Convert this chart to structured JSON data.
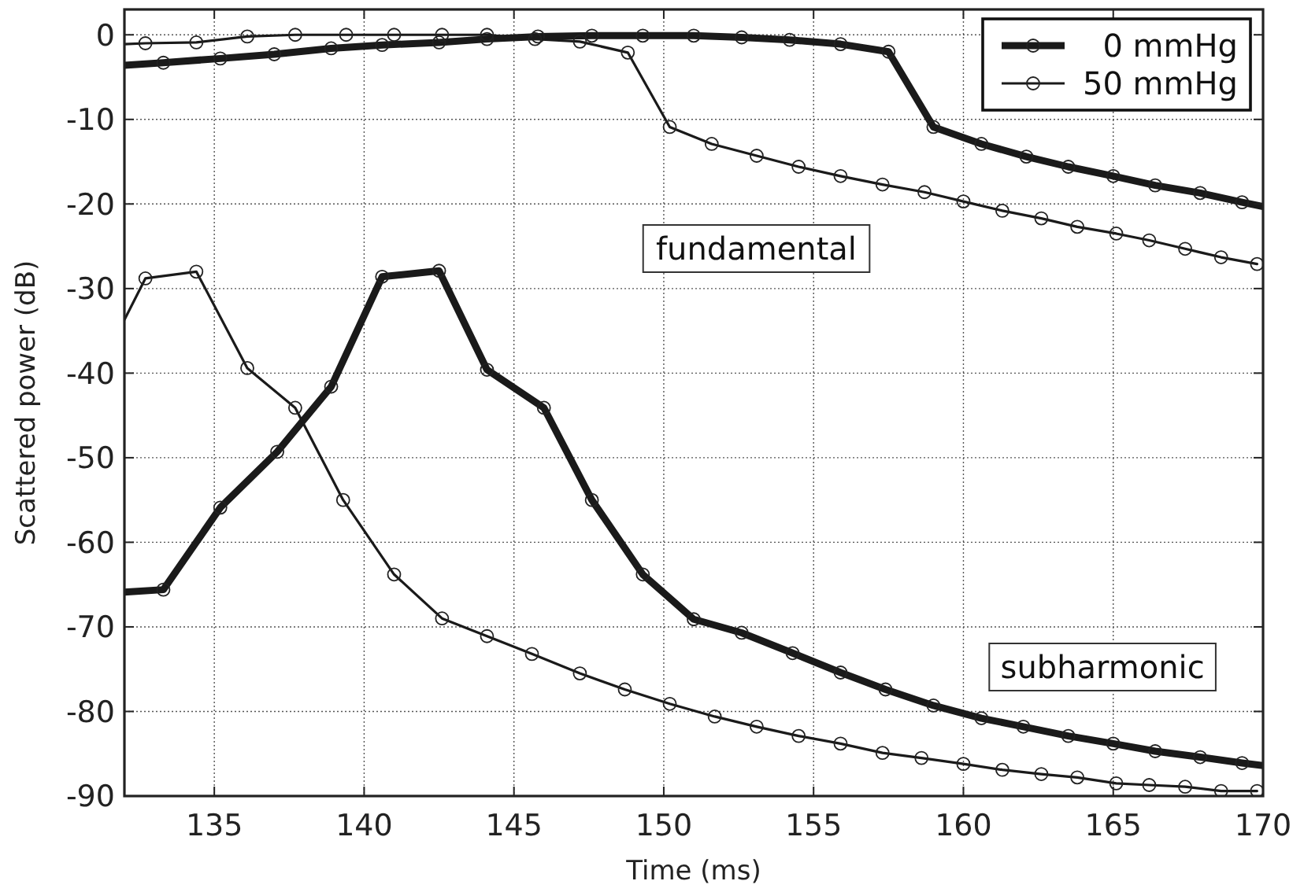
{
  "chart_data": {
    "type": "line",
    "xlabel": "Time (ms)",
    "ylabel": "Scattered power (dB)",
    "xlim": [
      132,
      170
    ],
    "ylim": [
      -90,
      3
    ],
    "xticks": [
      135,
      140,
      145,
      150,
      155,
      160,
      165,
      170
    ],
    "yticks": [
      -90,
      -80,
      -70,
      -60,
      -50,
      -40,
      -30,
      -20,
      -10,
      0
    ],
    "grid": true,
    "legend": "top right",
    "marker": "circle",
    "line_style": "solid",
    "annotations": [
      "fundamental",
      "subharmonic"
    ],
    "series": [
      {
        "name": "0 mmHg",
        "color": "#1a1a1a",
        "x": [
          132,
          133.3,
          135.2,
          137.0,
          138.9,
          140.6,
          142.5,
          144.1,
          145.8,
          147.6,
          149.3,
          151.0,
          152.6,
          154.2,
          155.9,
          157.5,
          159.0,
          160.6,
          162.1,
          163.5,
          165.0,
          166.4,
          167.9,
          169.3,
          170
        ],
        "values": [
          -3.6,
          -3.3,
          -2.8,
          -2.3,
          -1.6,
          -1.2,
          -0.9,
          -0.5,
          -0.2,
          -0.1,
          -0.1,
          -0.1,
          -0.3,
          -0.6,
          -1.1,
          -2.0,
          -10.9,
          -12.9,
          -14.4,
          -15.6,
          -16.7,
          -17.8,
          -18.7,
          -19.8,
          -20.3
        ]
      },
      {
        "name": "50 mmHg",
        "color": "#1a1a1a",
        "x": [
          132,
          132.7,
          134.4,
          136.1,
          137.7,
          139.4,
          141.0,
          142.6,
          144.1,
          145.7,
          147.2,
          148.8,
          150.2,
          151.6,
          153.1,
          154.5,
          155.9,
          157.3,
          158.7,
          160.0,
          161.3,
          162.6,
          163.8,
          165.1,
          166.2,
          167.4,
          168.6,
          169.8
        ],
        "values": [
          -1.1,
          -1.0,
          -0.9,
          -0.2,
          0,
          0,
          0,
          0,
          0,
          -0.5,
          -0.8,
          -2.1,
          -10.9,
          -12.9,
          -14.3,
          -15.6,
          -16.7,
          -17.7,
          -18.6,
          -19.7,
          -20.8,
          -21.7,
          -22.7,
          -23.5,
          -24.3,
          -25.3,
          -26.3,
          -27.1
        ]
      },
      {
        "color": "#1a1a1a",
        "x": [
          132,
          133.3,
          135.2,
          137.1,
          138.9,
          140.6,
          142.5,
          144.1,
          146.0,
          147.6,
          149.3,
          151.0,
          152.6,
          154.3,
          155.9,
          157.4,
          159.0,
          160.6,
          162.0,
          163.5,
          165.0,
          166.4,
          167.9,
          169.3,
          170
        ],
        "values": [
          -65.9,
          -65.6,
          -55.9,
          -49.3,
          -41.6,
          -28.6,
          -27.9,
          -39.6,
          -44.1,
          -55.0,
          -63.8,
          -69.1,
          -70.7,
          -73.1,
          -75.4,
          -77.4,
          -79.3,
          -80.8,
          -81.8,
          -82.9,
          -83.8,
          -84.7,
          -85.4,
          -86.1,
          -86.4
        ]
      },
      {
        "color": "#1a1a1a",
        "x": [
          132,
          132.7,
          134.4,
          136.1,
          137.7,
          139.3,
          141.0,
          142.6,
          144.1,
          145.6,
          147.2,
          148.7,
          150.2,
          151.7,
          153.1,
          154.5,
          155.9,
          157.3,
          158.6,
          160.0,
          161.3,
          162.6,
          163.8,
          165.1,
          166.2,
          167.4,
          168.6,
          169.8
        ],
        "values": [
          -33.7,
          -28.8,
          -28.0,
          -39.4,
          -44.1,
          -55.0,
          -63.8,
          -69.0,
          -71.1,
          -73.2,
          -75.5,
          -77.4,
          -79.1,
          -80.6,
          -81.8,
          -82.9,
          -83.8,
          -84.9,
          -85.5,
          -86.2,
          -86.9,
          -87.4,
          -87.8,
          -88.5,
          -88.7,
          -88.9,
          -89.4,
          -89.4
        ]
      }
    ]
  }
}
